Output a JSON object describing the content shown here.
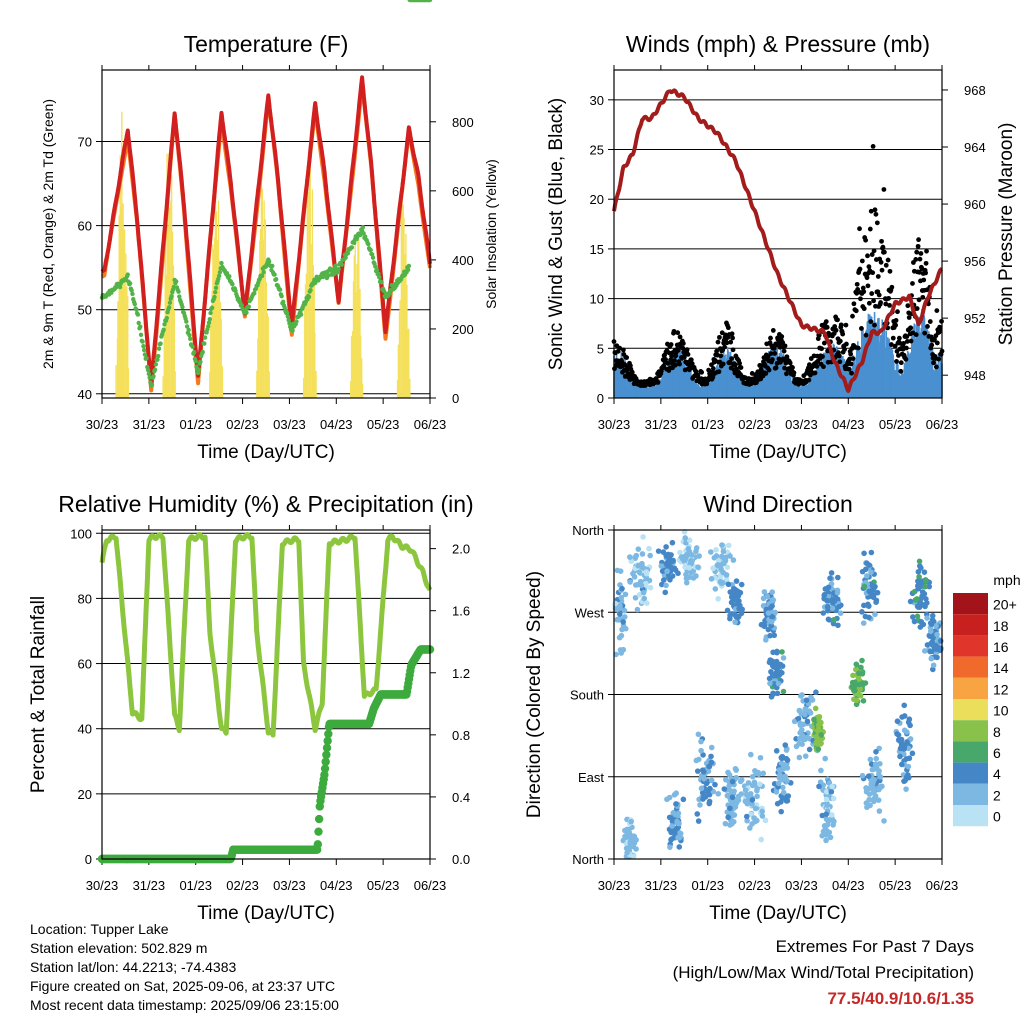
{
  "chart_data": [
    {
      "id": "temperature",
      "type": "line",
      "title": "Temperature (F)",
      "xlabel": "Time (Day/UTC)",
      "ylabel_left": "2m & 9m T (Red, Orange) & 2m Td (Green)",
      "ylabel_right": "Solar Insolation (Yellow)",
      "x_ticks": [
        "30/23",
        "31/23",
        "01/23",
        "02/23",
        "03/23",
        "04/23",
        "05/23",
        "06/23"
      ],
      "ylim": [
        39.5,
        78.5
      ],
      "y_ticks": [
        40,
        50,
        60,
        70
      ],
      "y2lim": [
        0,
        950
      ],
      "y2_ticks": [
        0,
        200,
        400,
        600,
        800
      ],
      "grid": "horizontal",
      "colors": {
        "t2m": "#d21f1f",
        "t9m": "#f47a20",
        "td": "#52b348",
        "solar": "#f5e05c"
      },
      "series": {
        "t2m": {
          "min": [
            54.5,
            41,
            42,
            49.5,
            48,
            51,
            47.5,
            55.5
          ],
          "max": [
            71.5,
            73.5,
            73.5,
            75.5,
            74.5,
            77.5,
            71.5
          ]
        },
        "td": {
          "min": [
            51.5,
            41,
            42.5,
            49.5,
            47.5,
            55,
            51.5
          ],
          "max": [
            54,
            53.5,
            55.5,
            56,
            53.5,
            59.5,
            55
          ]
        },
        "solar_peak": [
          920,
          880,
          830,
          810,
          840,
          560,
          670
        ]
      }
    },
    {
      "id": "winds",
      "type": "scatter",
      "title": "Winds (mph) & Pressure (mb)",
      "xlabel": "Time (Day/UTC)",
      "ylabel_left": "Sonic Wind & Gust (Blue, Black)",
      "ylabel_right": "Station Pressure (Maroon)",
      "x_ticks": [
        "30/23",
        "31/23",
        "01/23",
        "02/23",
        "03/23",
        "04/23",
        "05/23",
        "06/23"
      ],
      "ylim": [
        0,
        33
      ],
      "y_ticks": [
        0,
        5,
        10,
        15,
        20,
        25,
        30
      ],
      "y2lim": [
        946.4,
        969.4
      ],
      "y2_ticks": [
        948,
        952,
        956,
        960,
        964,
        968
      ],
      "grid": "horizontal",
      "colors": {
        "wind": "#4a90d0",
        "gust": "#000000",
        "pressure": "#a21c1c"
      },
      "pressure": {
        "x": [
          0,
          0.1,
          0.2,
          0.4,
          0.6,
          0.8,
          1.0,
          1.2,
          1.5,
          1.8,
          2.2,
          2.6,
          3.0,
          3.5,
          4.0,
          4.5,
          4.7,
          5.0,
          5.3,
          5.5,
          5.7,
          6.0,
          6.3,
          6.5,
          6.7,
          7.0
        ],
        "y": [
          959.5,
          961,
          962.5,
          963.5,
          966,
          966,
          967,
          968,
          967.5,
          966,
          965,
          963,
          959.5,
          955,
          951.5,
          951,
          949,
          947,
          949,
          951,
          951,
          953,
          953.5,
          951.5,
          953.5,
          955.5
        ]
      },
      "gust_peak": [
        7.5,
        10.5,
        11,
        10,
        13,
        31,
        26,
        12
      ],
      "wind_peak": [
        5,
        5.5,
        5.5,
        6,
        6,
        10,
        10,
        5
      ]
    },
    {
      "id": "humidity",
      "type": "line",
      "title": "Relative Humidity (%) & Precipitation (in)",
      "xlabel": "Time (Day/UTC)",
      "ylabel_left": "Percent & Total Rainfall",
      "x_ticks": [
        "30/23",
        "31/23",
        "01/23",
        "02/23",
        "03/23",
        "04/23",
        "05/23",
        "06/23"
      ],
      "ylim": [
        0,
        101
      ],
      "y_ticks": [
        0,
        20,
        40,
        60,
        80,
        100
      ],
      "y2lim": [
        0,
        2.12
      ],
      "y2_ticks": [
        "0.0",
        "0.4",
        "0.8",
        "1.2",
        "1.6",
        "2.0"
      ],
      "grid": "horizontal",
      "colors": {
        "rh": "#8cc63e",
        "precip": "#3daa3d"
      },
      "rh": {
        "x": [
          0,
          0.1,
          0.3,
          0.45,
          0.65,
          0.85,
          1.0,
          1.1,
          1.3,
          1.55,
          1.65,
          1.85,
          2.05,
          2.2,
          2.3,
          2.55,
          2.65,
          2.85,
          3.05,
          3.2,
          3.3,
          3.55,
          3.65,
          3.85,
          4.1,
          4.2,
          4.3,
          4.55,
          4.7,
          4.85,
          5.2,
          5.4,
          5.6,
          5.85,
          6.1,
          6.2,
          6.4,
          6.6,
          6.85,
          7.0
        ],
        "y": [
          91,
          98,
          99,
          75,
          45,
          43,
          98,
          99,
          99,
          44,
          40,
          98,
          99,
          99,
          70,
          40,
          39,
          98,
          99,
          99,
          70,
          39,
          38,
          97,
          98,
          98,
          60,
          40,
          48,
          97,
          98,
          99,
          50,
          52,
          98,
          99,
          96,
          95,
          88,
          82
        ]
      },
      "precip": {
        "x": [
          0,
          2.75,
          2.8,
          4.6,
          4.65,
          4.75,
          4.85,
          5.7,
          5.8,
          5.95,
          6.5,
          6.6,
          6.8,
          7.0
        ],
        "y": [
          0.0,
          0.0,
          0.06,
          0.06,
          0.35,
          0.55,
          0.87,
          0.87,
          0.97,
          1.06,
          1.06,
          1.25,
          1.35,
          1.35
        ]
      }
    },
    {
      "id": "wind-direction",
      "type": "scatter",
      "title": "Wind Direction",
      "xlabel": "Time (Day/UTC)",
      "ylabel": "Direction (Colored By Speed)",
      "x_ticks": [
        "30/23",
        "31/23",
        "01/23",
        "02/23",
        "03/23",
        "04/23",
        "05/23",
        "06/23"
      ],
      "y_ticks": [
        "North",
        "East",
        "South",
        "West",
        "North"
      ],
      "ylim": [
        0,
        360
      ],
      "grid": "horizontal",
      "legend": {
        "title": "mph",
        "labels": [
          "20+",
          "18",
          "16",
          "14",
          "12",
          "10",
          "8",
          "6",
          "4",
          "2",
          "0"
        ],
        "colors": [
          "#a3141a",
          "#c8201e",
          "#e0352a",
          "#f06a2c",
          "#f8a443",
          "#ebde5a",
          "#88c24a",
          "#48a86c",
          "#4587c6",
          "#7cb8e2",
          "#b9e2f5"
        ],
        "placement": "right"
      }
    }
  ],
  "info": {
    "location": "Location: Tupper Lake",
    "elevation": "Station elevation: 502.829 m",
    "latlon": "Station lat/lon: 44.2213; -74.4383",
    "created": "Figure created on Sat, 2025-09-06, at 23:37 UTC",
    "recent": "Most recent data timestamp: 2025/09/06 23:15:00"
  },
  "extremes": {
    "title": "Extremes For Past 7 Days",
    "subtitle": "(High/Low/Max Wind/Total Precipitation)",
    "values": "77.5/40.9/10.6/1.35",
    "color": "#c62828"
  }
}
